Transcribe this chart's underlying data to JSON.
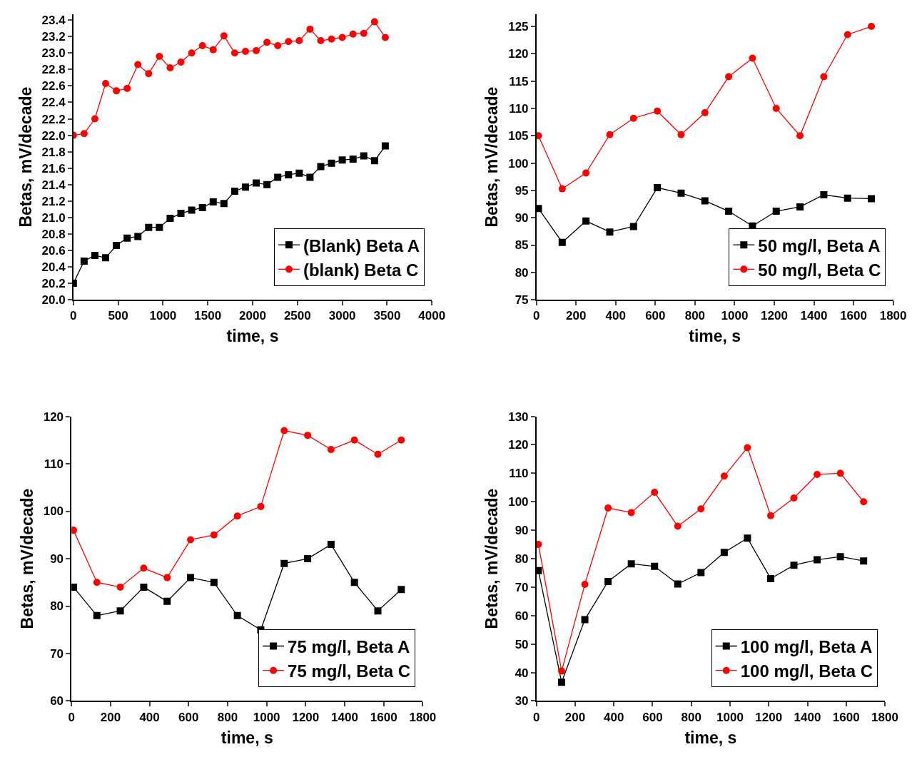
{
  "chart_data": [
    {
      "type": "line",
      "xlabel": "time, s",
      "ylabel": "Betas, mV/decade",
      "xlim": [
        0,
        4000
      ],
      "ylim": [
        20,
        23.47
      ],
      "legend": "bottom right",
      "line_style": "solid",
      "xticks": [
        0,
        500,
        1000,
        1500,
        2000,
        2500,
        3000,
        3500,
        4000
      ],
      "yticks": [
        {
          "value": 20,
          "label": "20.0"
        },
        {
          "value": 20.2,
          "label": "20.2"
        },
        {
          "value": 20.4,
          "label": "20.4"
        },
        {
          "value": 20.6,
          "label": "20.6"
        },
        {
          "value": 20.8,
          "label": "20.8"
        },
        {
          "value": 21,
          "label": "21.0"
        },
        {
          "value": 21.2,
          "label": "21.2"
        },
        {
          "value": 21.4,
          "label": "21.4"
        },
        {
          "value": 21.6,
          "label": "21.6"
        },
        {
          "value": 21.8,
          "label": "21.8"
        },
        {
          "value": 22,
          "label": "22.0"
        },
        {
          "value": 22.2,
          "label": "22.2"
        },
        {
          "value": 22.4,
          "label": "22.4"
        },
        {
          "value": 22.6,
          "label": "22.6"
        },
        {
          "value": 22.8,
          "label": "22.8"
        },
        {
          "value": 23,
          "label": "23.0"
        },
        {
          "value": 23.2,
          "label": "23.2"
        },
        {
          "value": 23.4,
          "label": "23.4"
        }
      ],
      "x": [
        0,
        120,
        240,
        360,
        480,
        600,
        720,
        840,
        960,
        1080,
        1200,
        1320,
        1440,
        1560,
        1680,
        1800,
        1920,
        2040,
        2160,
        2280,
        2400,
        2520,
        2640,
        2760,
        2880,
        3000,
        3120,
        3240,
        3360,
        3480
      ],
      "series": [
        {
          "name": "(Blank) Beta A",
          "color": "#000000",
          "marker": "square",
          "values": [
            20.2,
            20.47,
            20.54,
            20.51,
            20.66,
            20.75,
            20.77,
            20.88,
            20.88,
            20.99,
            21.05,
            21.09,
            21.12,
            21.19,
            21.17,
            21.32,
            21.37,
            21.42,
            21.4,
            21.49,
            21.52,
            21.54,
            21.49,
            21.62,
            21.66,
            21.7,
            21.71,
            21.75,
            21.69,
            21.87
          ]
        },
        {
          "name": "(blank) Beta C",
          "color": "#ff0000",
          "marker": "circle",
          "values": [
            22.0,
            22.02,
            22.2,
            22.63,
            22.54,
            22.57,
            22.86,
            22.75,
            22.96,
            22.82,
            22.89,
            23.0,
            23.09,
            23.04,
            23.21,
            23.0,
            23.02,
            23.03,
            23.13,
            23.09,
            23.14,
            23.15,
            23.29,
            23.15,
            23.17,
            23.19,
            23.23,
            23.24,
            23.38,
            23.19
          ]
        }
      ]
    },
    {
      "type": "line",
      "xlabel": "time, s",
      "ylabel": "Betas, mV/decade",
      "xlim": [
        0,
        1800
      ],
      "ylim": [
        75,
        127.2
      ],
      "legend": "bottom right",
      "line_style": "solid",
      "xticks": [
        0,
        200,
        400,
        600,
        800,
        1000,
        1200,
        1400,
        1600,
        1800
      ],
      "yticks": [
        75,
        80,
        85,
        90,
        95,
        100,
        105,
        110,
        115,
        120,
        125
      ],
      "x": [
        10,
        130,
        250,
        370,
        490,
        610,
        730,
        850,
        970,
        1090,
        1210,
        1330,
        1450,
        1570,
        1690
      ],
      "series": [
        {
          "name": "50 mg/l, Beta A",
          "color": "#000000",
          "marker": "square",
          "values": [
            91.7,
            85.5,
            89.4,
            87.4,
            88.4,
            95.5,
            94.5,
            93.1,
            91.2,
            88.5,
            91.2,
            92.0,
            94.2,
            93.6,
            93.5
          ]
        },
        {
          "name": "50 mg/l, Beta C",
          "color": "#ff0000",
          "marker": "circle",
          "values": [
            105.0,
            95.3,
            98.2,
            105.2,
            108.2,
            109.5,
            105.2,
            109.2,
            115.8,
            119.2,
            110.0,
            105.0,
            115.8,
            123.5,
            125.0
          ]
        }
      ]
    },
    {
      "type": "line",
      "xlabel": "time, s",
      "ylabel": "Betas, mV/decade",
      "xlim": [
        0,
        1800
      ],
      "ylim": [
        60,
        120
      ],
      "legend": "bottom right",
      "line_style": "solid",
      "xticks": [
        0,
        200,
        400,
        600,
        800,
        1000,
        1200,
        1400,
        1600,
        1800
      ],
      "yticks": [
        60,
        70,
        80,
        90,
        100,
        110,
        120
      ],
      "x": [
        10,
        130,
        250,
        370,
        490,
        610,
        730,
        850,
        970,
        1090,
        1210,
        1330,
        1450,
        1570,
        1690
      ],
      "series": [
        {
          "name": "75 mg/l, Beta A",
          "color": "#000000",
          "marker": "square",
          "values": [
            84,
            78,
            79,
            84,
            81,
            86,
            85,
            78,
            75,
            89,
            90,
            93,
            85,
            79,
            83.5
          ]
        },
        {
          "name": "75 mg/l, Beta C",
          "color": "#ff0000",
          "marker": "circle",
          "values": [
            96,
            85,
            84,
            88,
            86,
            94,
            95,
            99,
            101,
            117,
            116,
            113,
            115,
            112,
            115
          ]
        }
      ]
    },
    {
      "type": "line",
      "xlabel": "time, s",
      "ylabel": "Betas, mV/decade",
      "xlim": [
        0,
        1800
      ],
      "ylim": [
        30,
        130
      ],
      "legend": "bottom right",
      "line_style": "solid",
      "xticks": [
        0,
        200,
        400,
        600,
        800,
        1000,
        1200,
        1400,
        1600,
        1800
      ],
      "yticks": [
        30,
        40,
        50,
        60,
        70,
        80,
        90,
        100,
        110,
        120,
        130
      ],
      "x": [
        10,
        130,
        250,
        370,
        490,
        610,
        730,
        850,
        970,
        1090,
        1210,
        1330,
        1450,
        1570,
        1690
      ],
      "series": [
        {
          "name": "100 mg/l, Beta A",
          "color": "#000000",
          "marker": "square",
          "values": [
            75.8,
            36.6,
            58.6,
            72.0,
            78.2,
            77.3,
            71.1,
            75.1,
            82.2,
            87.2,
            73.0,
            77.7,
            79.6,
            80.7,
            79.2
          ]
        },
        {
          "name": "100 mg/l, Beta C",
          "color": "#ff0000",
          "marker": "circle",
          "values": [
            85.0,
            40.5,
            71.0,
            97.8,
            96.2,
            103.3,
            91.4,
            97.5,
            109.0,
            119.0,
            95.1,
            101.3,
            109.6,
            110.0,
            100.0
          ]
        }
      ]
    }
  ]
}
